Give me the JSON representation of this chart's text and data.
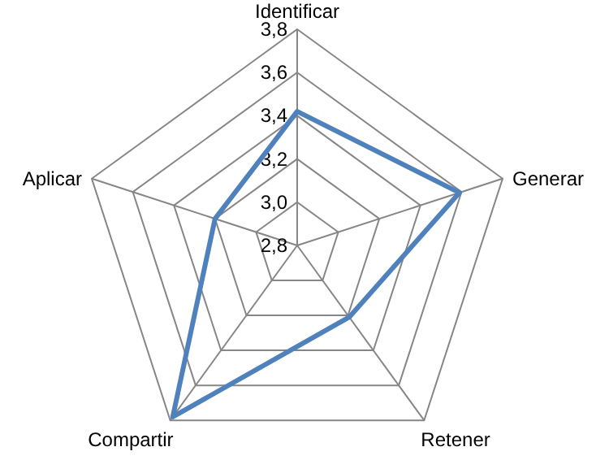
{
  "chart_data": {
    "type": "radar",
    "categories": [
      "Identificar",
      "Generar",
      "Retener",
      "Compartir",
      "Aplicar"
    ],
    "series": [
      {
        "color": "#4f81bd",
        "values": [
          3.42,
          3.59,
          3.21,
          3.78,
          3.2
        ]
      }
    ],
    "ylim": [
      2.8,
      3.8
    ],
    "yticks": [
      {
        "value": 2.8,
        "label": "2,8"
      },
      {
        "value": 3.0,
        "label": "3,0"
      },
      {
        "value": 3.2,
        "label": "3,2"
      },
      {
        "value": 3.4,
        "label": "3,4"
      },
      {
        "value": 3.6,
        "label": "3,6"
      },
      {
        "value": 3.8,
        "label": "3,8"
      }
    ],
    "grid": true,
    "marker": "none"
  }
}
